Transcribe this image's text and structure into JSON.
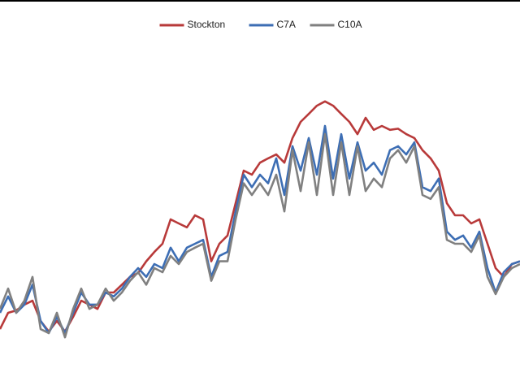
{
  "chart_data": {
    "type": "line",
    "legend": "top",
    "ylim": [
      0,
      100
    ],
    "series": [
      {
        "name": "Stockton",
        "color": "#b83a3a",
        "values": [
          15.6,
          19.8,
          20.4,
          21.9,
          22.9,
          17.7,
          15,
          17.7,
          15,
          18.75,
          22.9,
          21.9,
          20.8,
          25,
          25,
          27,
          29,
          30,
          33,
          35.4,
          37.5,
          43.75,
          42.7,
          41.7,
          44.8,
          43.75,
          33,
          37.5,
          39.6,
          47.9,
          56.25,
          55.2,
          58.3,
          59.4,
          60.4,
          58.3,
          64.6,
          68.75,
          70.8,
          72.9,
          74,
          72.9,
          70.8,
          68.75,
          65.6,
          69.8,
          66.7,
          67.7,
          66.7,
          67,
          65.6,
          64.6,
          61.5,
          59.4,
          56.25,
          47.9,
          44.8,
          44.8,
          42.7,
          43.75,
          37.5,
          31.25,
          29,
          32.3,
          33
        ]
      },
      {
        "name": "C7A",
        "color": "#3d6eb4",
        "values": [
          19.8,
          24,
          19.8,
          21.9,
          27,
          17.7,
          14.6,
          18.75,
          14.6,
          19.8,
          25,
          21.9,
          21.9,
          25,
          24,
          26,
          29,
          31.25,
          29,
          32.3,
          31.25,
          36.5,
          33,
          36.5,
          37.5,
          38.5,
          29,
          34.4,
          35.4,
          45.8,
          55.2,
          52,
          55.2,
          53,
          59.4,
          50,
          62.5,
          56.25,
          64.6,
          55.2,
          67.7,
          54.2,
          65.6,
          54.2,
          63.5,
          56.25,
          58.3,
          55.2,
          61.5,
          62.5,
          60.4,
          63.5,
          52,
          51,
          54.2,
          40.6,
          38.5,
          39.6,
          36.5,
          40.6,
          31.25,
          25,
          30.2,
          32.3,
          33
        ]
      },
      {
        "name": "C10A",
        "color": "#808080",
        "values": [
          20.8,
          26,
          19.8,
          22.9,
          29,
          15.6,
          14.6,
          19.8,
          13.5,
          20.8,
          26,
          20.8,
          21.9,
          26,
          22.9,
          25,
          28,
          30.2,
          27,
          31.25,
          30.2,
          34.4,
          32.3,
          35.4,
          36.5,
          37.5,
          28,
          33,
          33,
          43.75,
          53,
          50,
          53,
          50,
          55.2,
          45.8,
          61.5,
          51,
          63.5,
          50,
          65.6,
          50,
          63.5,
          50,
          62.5,
          51,
          54.2,
          52,
          59.4,
          61.5,
          58.3,
          62.5,
          50,
          49,
          52,
          38.5,
          37.5,
          37.5,
          35.4,
          39.6,
          29,
          24.6,
          29,
          31.25,
          32.3
        ]
      }
    ]
  }
}
